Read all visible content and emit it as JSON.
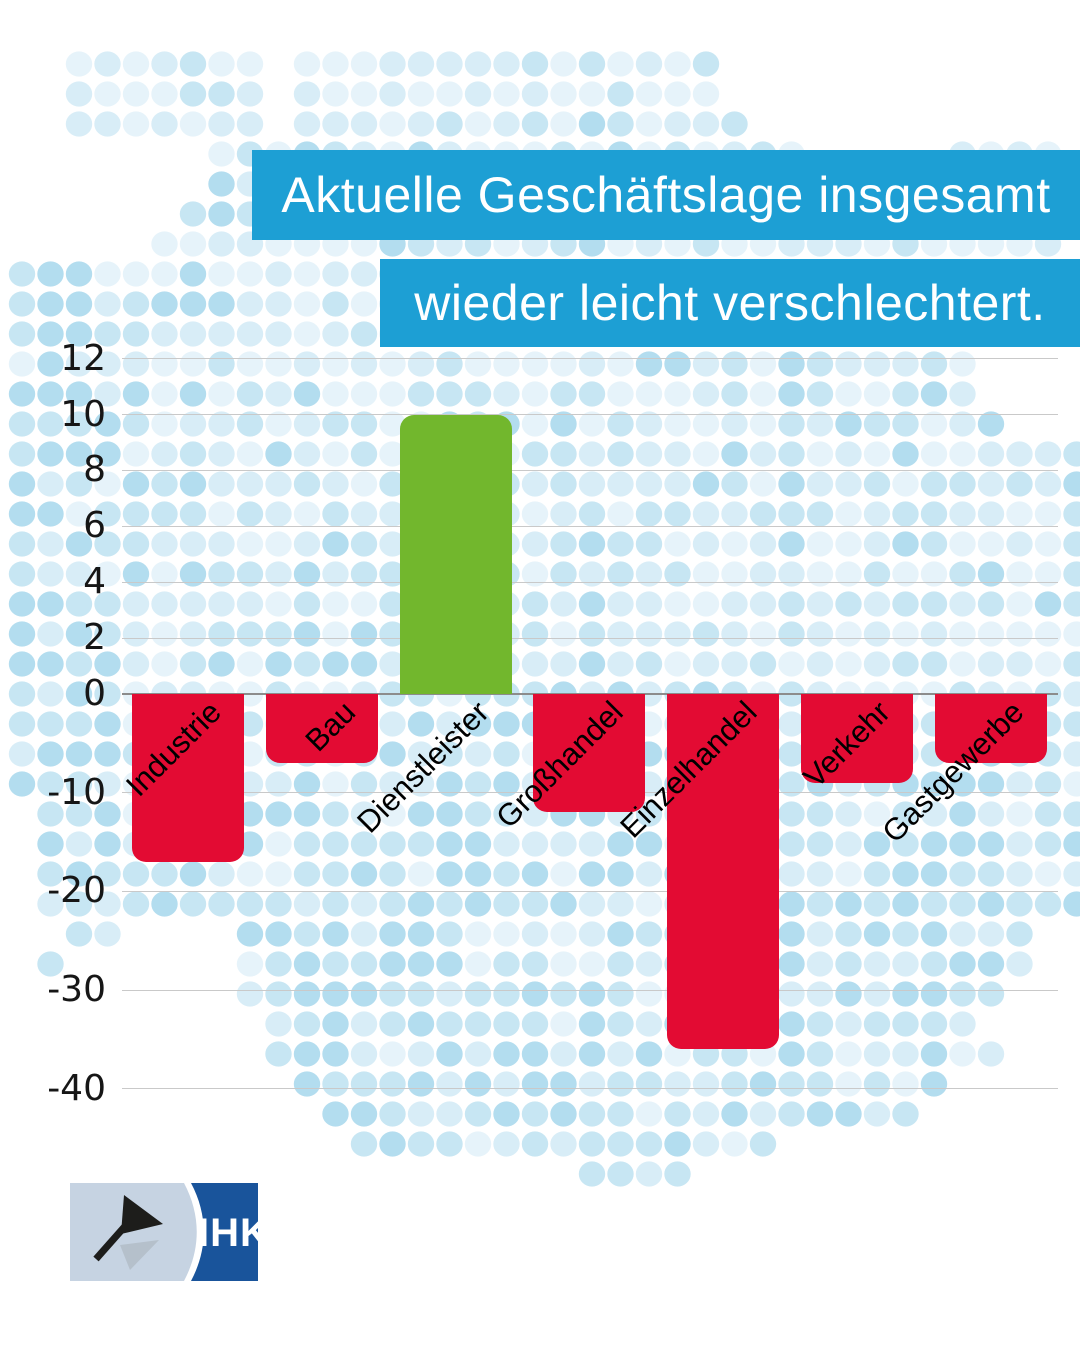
{
  "banners": {
    "line1": "Aktuelle Geschäftslage insgesamt",
    "line2": "wieder leicht verschlechtert.",
    "bg_color": "#1d9fd4",
    "text_color": "#ffffff"
  },
  "chart_data": {
    "type": "bar",
    "categories": [
      "Industrie",
      "Bau",
      "Dienstleister",
      "Großhandel",
      "Einzelhandel",
      "Verkehr",
      "Gastgewerbe"
    ],
    "values": [
      -17,
      -7,
      10,
      -12,
      -36,
      -9,
      -7
    ],
    "positive_color": "#72b72d",
    "negative_color": "#e30b33",
    "y_ticks": [
      12,
      10,
      8,
      6,
      4,
      2,
      0,
      -10,
      -20,
      -30,
      -40
    ],
    "ylim": [
      -40,
      12
    ],
    "grid": true,
    "gridline_color": "#c9c9c9",
    "zero_line_color": "#8c8c8c",
    "label_color": "#000000"
  },
  "logo": {
    "text": "IHK",
    "panel_light_color": "#c6d3e2",
    "panel_dark_color": "#19549b",
    "flag_color": "#1d1d1b"
  },
  "background": {
    "dot_colors": [
      "#e6f3fa",
      "#d8edf7",
      "#c7e6f3",
      "#b3ddef"
    ]
  }
}
